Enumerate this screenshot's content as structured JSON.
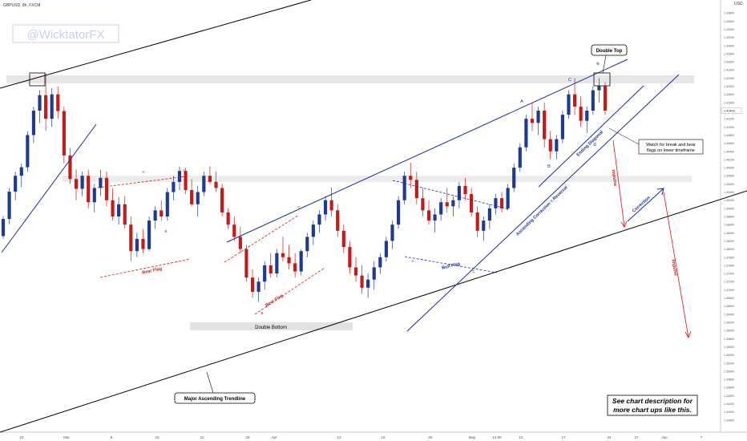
{
  "header": {
    "symbol_label": "GBPUSD, 8h, FXCM",
    "watermark": "@WicktatorFX"
  },
  "colors": {
    "up": "#1f3b8f",
    "down": "#c51a1a",
    "trend_black": "#000000",
    "channel_blue": "#1a2aa8",
    "annotation_red": "#d11",
    "zone": "#e6e6e6"
  },
  "chart_data": {
    "type": "candlestick",
    "title": "",
    "xlabel": "",
    "ylabel": "",
    "currency": "USD",
    "ylim": [
      1.336,
      1.44
    ],
    "y_ticks": [
      "1.43800",
      "1.43600",
      "1.43400",
      "1.43200",
      "1.43000",
      "1.42800",
      "1.42600",
      "1.42400",
      "1.42200",
      "1.42000",
      "1.41800",
      "1.41600",
      "1.41400",
      "1.41200",
      "1.41000",
      "1.40800",
      "1.40600",
      "1.40400",
      "1.40200",
      "1.40000",
      "1.39800",
      "1.39600",
      "1.39400",
      "1.39200",
      "1.39000",
      "1.38800",
      "1.38600",
      "1.38400",
      "1.38200",
      "1.38000",
      "1.37800",
      "1.37600",
      "1.37400",
      "1.37200",
      "1.37000",
      "1.36800",
      "1.36600",
      "1.36400",
      "1.36200",
      "1.36000",
      "1.35800",
      "1.35600",
      "1.35400",
      "1.35200",
      "1.35000",
      "1.34800",
      "1.34600",
      "1.34400",
      "1.34200",
      "1.34000",
      "1.33800"
    ],
    "last_price": "1.41403",
    "x_ticks": [
      "22",
      "Mar",
      "8",
      "15",
      "22",
      "29",
      "Apr",
      "12",
      "19",
      "26",
      "May",
      "14:00",
      "10",
      "17",
      "24",
      "27",
      "Jun",
      "7"
    ],
    "candles": [
      [
        1.3832,
        1.3881,
        1.3825,
        1.3874
      ],
      [
        1.3874,
        1.395,
        1.3861,
        1.3941
      ],
      [
        1.3941,
        1.399,
        1.392,
        1.398
      ],
      [
        1.398,
        1.401,
        1.3952,
        1.4001
      ],
      [
        1.4001,
        1.4089,
        1.399,
        1.408
      ],
      [
        1.408,
        1.415,
        1.406,
        1.414
      ],
      [
        1.414,
        1.419,
        1.411,
        1.4178
      ],
      [
        1.4178,
        1.4232,
        1.409,
        1.412
      ],
      [
        1.412,
        1.4195,
        1.41,
        1.418
      ],
      [
        1.418,
        1.4199,
        1.412,
        1.4139
      ],
      [
        1.4139,
        1.415,
        1.401,
        1.403
      ],
      [
        1.403,
        1.4048,
        1.396,
        1.3972
      ],
      [
        1.3972,
        1.3996,
        1.392,
        1.3948
      ],
      [
        1.3948,
        1.399,
        1.393,
        1.398
      ],
      [
        1.398,
        1.3995,
        1.39,
        1.3915
      ],
      [
        1.3915,
        1.396,
        1.389,
        1.395
      ],
      [
        1.395,
        1.3995,
        1.393,
        1.3975
      ],
      [
        1.3975,
        1.399,
        1.3905,
        1.392
      ],
      [
        1.392,
        1.395,
        1.387,
        1.388
      ],
      [
        1.388,
        1.3928,
        1.386,
        1.391
      ],
      [
        1.391,
        1.393,
        1.385,
        1.386
      ],
      [
        1.386,
        1.388,
        1.377,
        1.3795
      ],
      [
        1.3795,
        1.384,
        1.378,
        1.3825
      ],
      [
        1.3825,
        1.385,
        1.379,
        1.38
      ],
      [
        1.38,
        1.388,
        1.3795,
        1.387
      ],
      [
        1.387,
        1.3905,
        1.385,
        1.3895
      ],
      [
        1.3895,
        1.392,
        1.387,
        1.388
      ],
      [
        1.388,
        1.395,
        1.387,
        1.394
      ],
      [
        1.394,
        1.398,
        1.392,
        1.3965
      ],
      [
        1.3965,
        1.4002,
        1.3945,
        1.3992
      ],
      [
        1.3992,
        1.4,
        1.3935,
        1.3945
      ],
      [
        1.3945,
        1.3972,
        1.3905,
        1.391
      ],
      [
        1.391,
        1.3955,
        1.388,
        1.394
      ],
      [
        1.394,
        1.399,
        1.393,
        1.398
      ],
      [
        1.398,
        1.4003,
        1.396,
        1.3965
      ],
      [
        1.3965,
        1.399,
        1.394,
        1.395
      ],
      [
        1.395,
        1.396,
        1.388,
        1.389
      ],
      [
        1.389,
        1.39,
        1.385,
        1.386
      ],
      [
        1.386,
        1.388,
        1.382,
        1.383
      ],
      [
        1.383,
        1.3855,
        1.379,
        1.38
      ],
      [
        1.38,
        1.381,
        1.372,
        1.373
      ],
      [
        1.373,
        1.375,
        1.368,
        1.3695
      ],
      [
        1.3695,
        1.373,
        1.367,
        1.372
      ],
      [
        1.372,
        1.377,
        1.37,
        1.376
      ],
      [
        1.376,
        1.379,
        1.373,
        1.374
      ],
      [
        1.374,
        1.38,
        1.373,
        1.379
      ],
      [
        1.379,
        1.383,
        1.377,
        1.378
      ],
      [
        1.378,
        1.381,
        1.375,
        1.3765
      ],
      [
        1.3765,
        1.379,
        1.373,
        1.3745
      ],
      [
        1.3745,
        1.38,
        1.3735,
        1.3795
      ],
      [
        1.3795,
        1.384,
        1.378,
        1.383
      ],
      [
        1.383,
        1.387,
        1.381,
        1.386
      ],
      [
        1.386,
        1.3895,
        1.384,
        1.3885
      ],
      [
        1.3885,
        1.393,
        1.387,
        1.392
      ],
      [
        1.392,
        1.3952,
        1.388,
        1.3895
      ],
      [
        1.3895,
        1.391,
        1.383,
        1.3845
      ],
      [
        1.3845,
        1.386,
        1.379,
        1.3805
      ],
      [
        1.3805,
        1.382,
        1.374,
        1.3755
      ],
      [
        1.3755,
        1.378,
        1.372,
        1.3735
      ],
      [
        1.3735,
        1.376,
        1.369,
        1.3705
      ],
      [
        1.3705,
        1.374,
        1.368,
        1.3725
      ],
      [
        1.3725,
        1.377,
        1.37,
        1.3755
      ],
      [
        1.3755,
        1.379,
        1.374,
        1.378
      ],
      [
        1.378,
        1.383,
        1.377,
        1.382
      ],
      [
        1.382,
        1.387,
        1.38,
        1.386
      ],
      [
        1.386,
        1.393,
        1.385,
        1.392
      ],
      [
        1.392,
        1.399,
        1.391,
        1.398
      ],
      [
        1.398,
        1.4012,
        1.395,
        1.397
      ],
      [
        1.397,
        1.399,
        1.391,
        1.3925
      ],
      [
        1.3925,
        1.395,
        1.388,
        1.3895
      ],
      [
        1.3895,
        1.392,
        1.386,
        1.387
      ],
      [
        1.387,
        1.39,
        1.384,
        1.3885
      ],
      [
        1.3885,
        1.3925,
        1.387,
        1.3915
      ],
      [
        1.3915,
        1.395,
        1.389,
        1.3905
      ],
      [
        1.3905,
        1.393,
        1.388,
        1.392
      ],
      [
        1.392,
        1.3965,
        1.39,
        1.3955
      ],
      [
        1.3955,
        1.3975,
        1.392,
        1.3935
      ],
      [
        1.3935,
        1.395,
        1.388,
        1.389
      ],
      [
        1.389,
        1.3905,
        1.383,
        1.3845
      ],
      [
        1.3845,
        1.388,
        1.382,
        1.387
      ],
      [
        1.387,
        1.391,
        1.385,
        1.39
      ],
      [
        1.39,
        1.3935,
        1.3885,
        1.3925
      ],
      [
        1.3925,
        1.394,
        1.389,
        1.39
      ],
      [
        1.39,
        1.396,
        1.3895,
        1.395
      ],
      [
        1.395,
        1.401,
        1.394,
        1.4
      ],
      [
        1.4,
        1.406,
        1.399,
        1.405
      ],
      [
        1.405,
        1.413,
        1.404,
        1.412
      ],
      [
        1.412,
        1.416,
        1.409,
        1.411
      ],
      [
        1.411,
        1.415,
        1.408,
        1.414
      ],
      [
        1.414,
        1.416,
        1.405,
        1.407
      ],
      [
        1.407,
        1.409,
        1.402,
        1.404
      ],
      [
        1.404,
        1.408,
        1.402,
        1.407
      ],
      [
        1.407,
        1.414,
        1.406,
        1.413
      ],
      [
        1.413,
        1.419,
        1.412,
        1.418
      ],
      [
        1.418,
        1.422,
        1.413,
        1.415
      ],
      [
        1.415,
        1.4175,
        1.41,
        1.4115
      ],
      [
        1.4115,
        1.415,
        1.4085,
        1.414
      ],
      [
        1.414,
        1.42,
        1.413,
        1.419
      ],
      [
        1.419,
        1.422,
        1.416,
        1.42
      ],
      [
        1.42,
        1.421,
        1.413,
        1.414
      ]
    ]
  },
  "annotations": {
    "double_top": "Double Top",
    "double_bottom": "Double Bottom",
    "watch_note_line1": "Watch for break and bear",
    "watch_note_line2": "flags on lower timeframe",
    "major_trendline": "Major Ascending Trendline",
    "bear_flag_1": "Bear Flag",
    "bear_flag_2": "Bear Flag",
    "bull_flag": "Bull Flag",
    "ascending_correction": "Ascending Correction = Reversal",
    "ending_diagonal": "Ending Diagonal",
    "impulse_1": "Impulse",
    "impulse_2": "Impulse",
    "correction": "Correction",
    "see_desc_line1": "See chart description for",
    "see_desc_line2": "more chart ups like this.",
    "wave_labels": {
      "a1": "A",
      "c1": "C",
      "b1": "B",
      "a2": "A",
      "b2": "B",
      "c2": "C",
      "a3": "A",
      "b3": "B",
      "c3": "C",
      "a4": "A",
      "c4": "C",
      "b4": "B",
      "d": "d",
      "e": "e"
    }
  }
}
